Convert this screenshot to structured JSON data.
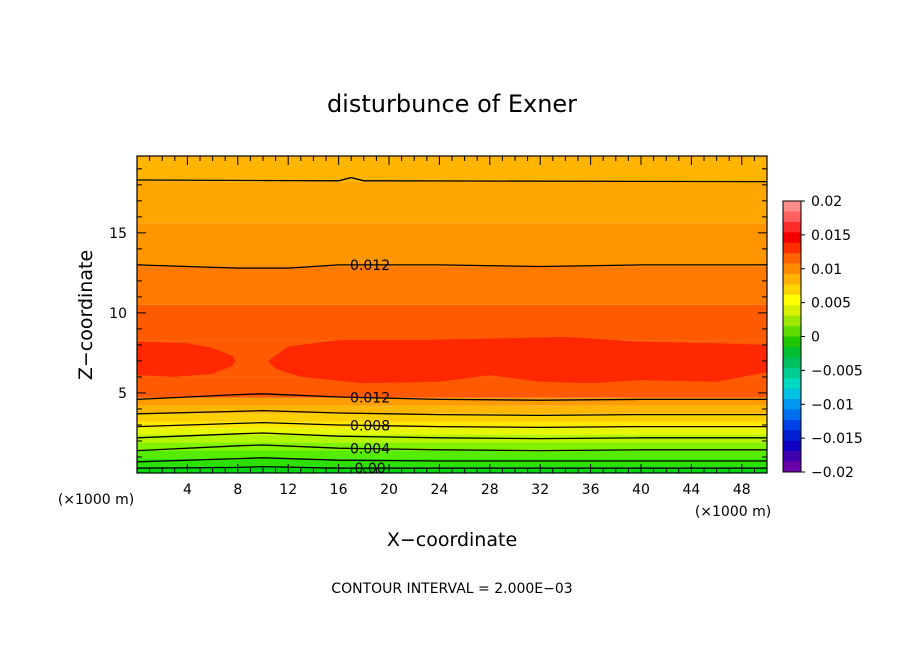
{
  "chart_data": {
    "type": "contour",
    "title": "disturbunce of Exner",
    "xlabel": "X−coordinate",
    "ylabel": "Z−coordinate",
    "x_unit_left": "(×1000 m)",
    "x_unit_right": "(×1000 m)",
    "footer": "CONTOUR INTERVAL = 2.000E−03",
    "xlim": [
      0,
      50
    ],
    "ylim": [
      0,
      19.8
    ],
    "x_ticks": [
      4,
      8,
      12,
      16,
      20,
      24,
      28,
      32,
      36,
      40,
      44,
      48
    ],
    "x_tick_labels": [
      "4",
      "8",
      "12",
      "16",
      "20",
      "24",
      "28",
      "32",
      "36",
      "40",
      "44",
      "48"
    ],
    "y_ticks": [
      5,
      10,
      15
    ],
    "y_tick_labels": [
      "5",
      "10",
      "15"
    ],
    "contour_interval": 0.002,
    "filled_bands": [
      {
        "z_from": 0.0,
        "z_to": 0.4,
        "value": 0.0008,
        "color": "#00d40d"
      },
      {
        "z_from": 0.4,
        "z_to": 0.9,
        "value": 0.0018,
        "color": "#2de000"
      },
      {
        "z_from": 0.9,
        "z_to": 1.4,
        "value": 0.0028,
        "color": "#55ec00"
      },
      {
        "z_from": 1.4,
        "z_to": 1.9,
        "value": 0.0038,
        "color": "#80f200"
      },
      {
        "z_from": 1.9,
        "z_to": 2.4,
        "value": 0.0048,
        "color": "#b4f500"
      },
      {
        "z_from": 2.4,
        "z_to": 2.8,
        "value": 0.0058,
        "color": "#e5f800"
      },
      {
        "z_from": 2.8,
        "z_to": 3.2,
        "value": 0.0068,
        "color": "#ffe800"
      },
      {
        "z_from": 3.2,
        "z_to": 3.7,
        "value": 0.0078,
        "color": "#ffd000"
      },
      {
        "z_from": 3.7,
        "z_to": 4.2,
        "value": 0.0088,
        "color": "#ffb600"
      },
      {
        "z_from": 4.2,
        "z_to": 4.7,
        "value": 0.0105,
        "color": "#ff9c00"
      },
      {
        "z_from": 4.7,
        "z_to": 6.0,
        "value": 0.0125,
        "color": "#ff5a00"
      },
      {
        "z_from": 6.0,
        "z_to": 8.3,
        "value": 0.0145,
        "color": "#ff2800"
      },
      {
        "z_from": 8.3,
        "z_to": 10.5,
        "value": 0.0125,
        "color": "#ff5a00"
      },
      {
        "z_from": 10.5,
        "z_to": 12.9,
        "value": 0.0115,
        "color": "#ff7a00"
      },
      {
        "z_from": 12.9,
        "z_to": 15.6,
        "value": 0.0105,
        "color": "#ff9600"
      },
      {
        "z_from": 15.6,
        "z_to": 18.2,
        "value": 0.0095,
        "color": "#ffa700"
      },
      {
        "z_from": 18.2,
        "z_to": 19.8,
        "value": 0.0088,
        "color": "#ffb400"
      }
    ],
    "contour_lines": [
      {
        "level": 0.0,
        "label": "0.00",
        "pts": [
          [
            0,
            0.3
          ],
          [
            8,
            0.35
          ],
          [
            10,
            0.4
          ],
          [
            16,
            0.3
          ],
          [
            24,
            0.3
          ],
          [
            32,
            0.3
          ],
          [
            40,
            0.3
          ],
          [
            50,
            0.3
          ]
        ]
      },
      {
        "level": 0.002,
        "pts": [
          [
            0,
            0.7
          ],
          [
            8,
            0.9
          ],
          [
            10,
            0.95
          ],
          [
            16,
            0.8
          ],
          [
            24,
            0.75
          ],
          [
            32,
            0.75
          ],
          [
            40,
            0.75
          ],
          [
            50,
            0.75
          ]
        ]
      },
      {
        "level": 0.004,
        "label": "0.004",
        "pts": [
          [
            0,
            1.4
          ],
          [
            8,
            1.7
          ],
          [
            10,
            1.75
          ],
          [
            16,
            1.55
          ],
          [
            24,
            1.45
          ],
          [
            32,
            1.4
          ],
          [
            40,
            1.45
          ],
          [
            50,
            1.45
          ]
        ]
      },
      {
        "level": 0.006,
        "pts": [
          [
            0,
            2.2
          ],
          [
            8,
            2.45
          ],
          [
            10,
            2.5
          ],
          [
            16,
            2.3
          ],
          [
            24,
            2.2
          ],
          [
            32,
            2.15
          ],
          [
            40,
            2.2
          ],
          [
            50,
            2.2
          ]
        ]
      },
      {
        "level": 0.008,
        "label": "0.008",
        "pts": [
          [
            0,
            2.9
          ],
          [
            8,
            3.1
          ],
          [
            10,
            3.15
          ],
          [
            16,
            3.0
          ],
          [
            24,
            2.9
          ],
          [
            32,
            2.85
          ],
          [
            40,
            2.9
          ],
          [
            50,
            2.9
          ]
        ]
      },
      {
        "level": 0.01,
        "pts": [
          [
            0,
            3.7
          ],
          [
            8,
            3.85
          ],
          [
            10,
            3.9
          ],
          [
            16,
            3.75
          ],
          [
            24,
            3.65
          ],
          [
            32,
            3.6
          ],
          [
            40,
            3.65
          ],
          [
            50,
            3.65
          ]
        ]
      },
      {
        "level": 0.012,
        "label": "0.012",
        "pts": [
          [
            0,
            4.6
          ],
          [
            8,
            4.9
          ],
          [
            10,
            4.95
          ],
          [
            16,
            4.75
          ],
          [
            24,
            4.6
          ],
          [
            32,
            4.55
          ],
          [
            40,
            4.6
          ],
          [
            50,
            4.6
          ]
        ]
      },
      {
        "level": 0.012,
        "label": "0.012",
        "pts": [
          [
            0,
            13.0
          ],
          [
            8,
            12.8
          ],
          [
            12,
            12.8
          ],
          [
            16,
            13.0
          ],
          [
            24,
            13.0
          ],
          [
            32,
            12.9
          ],
          [
            40,
            13.0
          ],
          [
            50,
            13.0
          ]
        ]
      },
      {
        "level": 0.01,
        "pts": [
          [
            0,
            18.3
          ],
          [
            16,
            18.25
          ],
          [
            17,
            18.45
          ],
          [
            18,
            18.25
          ],
          [
            50,
            18.2
          ]
        ]
      }
    ],
    "colorbar": {
      "range": [
        -0.02,
        0.02
      ],
      "ticks": [
        0.02,
        0.015,
        0.01,
        0.005,
        0,
        -0.005,
        -0.01,
        -0.015,
        -0.02
      ],
      "tick_labels": [
        "0.02",
        "0.015",
        "0.01",
        "0.005",
        "0",
        "−0.005",
        "−0.01",
        "−0.015",
        "−0.02"
      ],
      "colors_top_to_bottom": [
        "#ff8a8a",
        "#ff6060",
        "#ff2a2a",
        "#f50000",
        "#ff2e00",
        "#ff6000",
        "#ff8c00",
        "#ffb000",
        "#ffd400",
        "#ffff00",
        "#d6f000",
        "#9ee800",
        "#5fdc00",
        "#20c800",
        "#00bf30",
        "#00c060",
        "#00cc90",
        "#00d8c0",
        "#00c0e0",
        "#0098f0",
        "#0070f0",
        "#0040e8",
        "#0020d0",
        "#1000c0",
        "#4000b0",
        "#6a00a8"
      ]
    },
    "legend": "right"
  }
}
